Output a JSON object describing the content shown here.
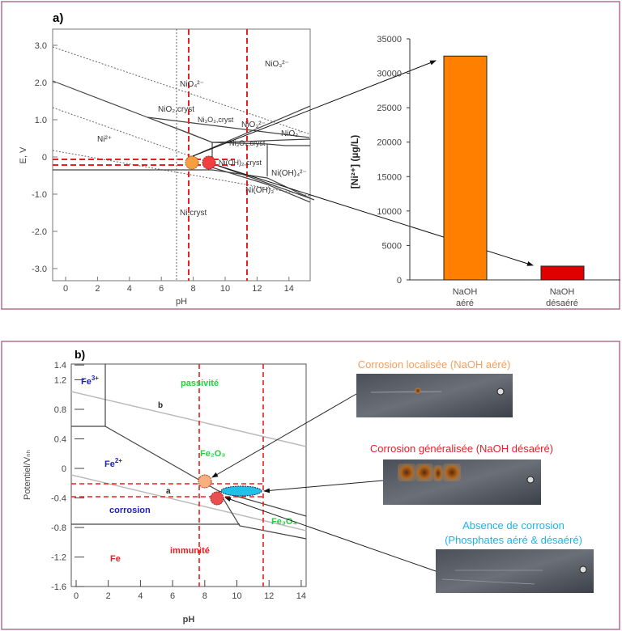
{
  "panel_a": {
    "label": "a)",
    "pourbaix": {
      "xlabel": "pH",
      "ylabel": "E, V",
      "xticks": [
        "0",
        "2",
        "4",
        "6",
        "8",
        "10",
        "12",
        "14"
      ],
      "yticks": [
        "3.0",
        "2.0",
        "1.0",
        "0",
        "-1.0",
        "-2.0",
        "-3.0"
      ],
      "regions": [
        "NiO₃²⁻",
        "NiO₄²⁻",
        "NiO₂,cryst",
        "Ni₃O₃,cryst",
        "NiO₃²⁻",
        "NiO₂⁻",
        "Ni²⁺",
        "Ni₃O₄,cryst",
        "Ni(OH)₂,cryst",
        "Ni(OH)₄²⁻",
        "Ni(OH)₃⁻",
        "Ni,cryst"
      ]
    }
  },
  "chart_data": {
    "type": "bar",
    "categories": [
      "NaOH aéré",
      "NaOH désaéré"
    ],
    "category_lines": [
      [
        "NaOH",
        "aéré"
      ],
      [
        "NaOH",
        "désaéré"
      ]
    ],
    "values": [
      32500,
      2000
    ],
    "colors": [
      "#ff8000",
      "#e00000"
    ],
    "title": "",
    "xlabel": "",
    "ylabel": "[Ni²⁺]  (µg/L)",
    "ylim": [
      0,
      35000
    ],
    "yticks": [
      "0",
      "5000",
      "10000",
      "15000",
      "20000",
      "25000",
      "30000",
      "35000"
    ]
  },
  "panel_b": {
    "label": "b)",
    "pourbaix": {
      "xlabel": "pH",
      "ylabel": "Potentiel/Vₙₕ",
      "xticks": [
        "0",
        "2",
        "4",
        "6",
        "8",
        "10",
        "12",
        "14"
      ],
      "yticks": [
        "1.4",
        "1.2",
        "0.8",
        "0.4",
        "0",
        "-0.4",
        "-0.8",
        "-1.2",
        "-1.6"
      ],
      "regions": {
        "fe3": "Fe",
        "fe3_sup": "3+",
        "fe2": "Fe",
        "fe2_sup": "2+",
        "passivite": "passivité",
        "fe2o3": "Fe₂O₃",
        "fe3o4": "Fe₃O₄",
        "corrosion": "corrosion",
        "immunite": "immunité",
        "fe": "Fe",
        "line_a": "a",
        "line_b": "b"
      }
    },
    "photos": [
      {
        "caption": "Corrosion localisée (NaOH aéré)",
        "color": "#f0a060"
      },
      {
        "caption": "Corrosion généralisée (NaOH désaéré)",
        "color": "#e8202a"
      },
      {
        "caption_line1": "Absence de corrosion",
        "caption_line2": "(Phosphates aéré & désaéré)",
        "color": "#19b4e6"
      }
    ]
  }
}
